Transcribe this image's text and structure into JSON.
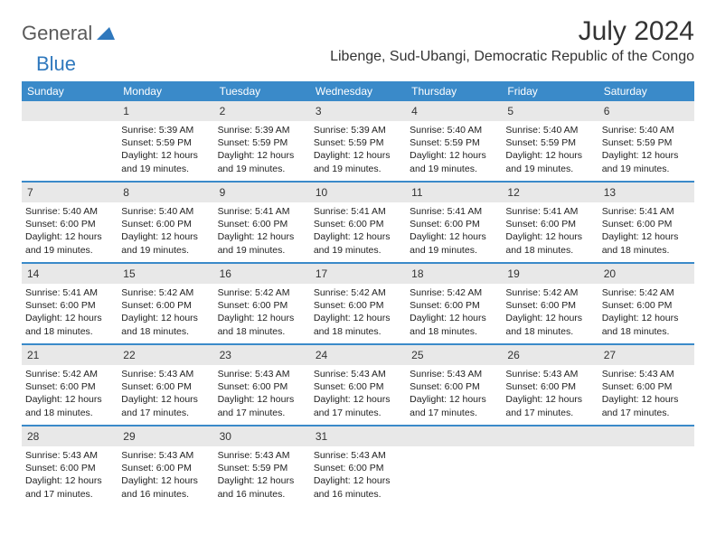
{
  "brand": {
    "word1": "General",
    "word2": "Blue"
  },
  "colors": {
    "accent": "#3a8ac9",
    "headerText": "#ffffff",
    "dayStripe": "#e8e8e8",
    "text": "#333333"
  },
  "title": "July 2024",
  "location": "Libenge, Sud-Ubangi, Democratic Republic of the Congo",
  "dow": [
    "Sunday",
    "Monday",
    "Tuesday",
    "Wednesday",
    "Thursday",
    "Friday",
    "Saturday"
  ],
  "weeks": [
    [
      {
        "blank": true
      },
      {
        "d": "1",
        "sr": "5:39 AM",
        "ss": "5:59 PM",
        "dl": "12 hours and 19 minutes."
      },
      {
        "d": "2",
        "sr": "5:39 AM",
        "ss": "5:59 PM",
        "dl": "12 hours and 19 minutes."
      },
      {
        "d": "3",
        "sr": "5:39 AM",
        "ss": "5:59 PM",
        "dl": "12 hours and 19 minutes."
      },
      {
        "d": "4",
        "sr": "5:40 AM",
        "ss": "5:59 PM",
        "dl": "12 hours and 19 minutes."
      },
      {
        "d": "5",
        "sr": "5:40 AM",
        "ss": "5:59 PM",
        "dl": "12 hours and 19 minutes."
      },
      {
        "d": "6",
        "sr": "5:40 AM",
        "ss": "5:59 PM",
        "dl": "12 hours and 19 minutes."
      }
    ],
    [
      {
        "d": "7",
        "sr": "5:40 AM",
        "ss": "6:00 PM",
        "dl": "12 hours and 19 minutes."
      },
      {
        "d": "8",
        "sr": "5:40 AM",
        "ss": "6:00 PM",
        "dl": "12 hours and 19 minutes."
      },
      {
        "d": "9",
        "sr": "5:41 AM",
        "ss": "6:00 PM",
        "dl": "12 hours and 19 minutes."
      },
      {
        "d": "10",
        "sr": "5:41 AM",
        "ss": "6:00 PM",
        "dl": "12 hours and 19 minutes."
      },
      {
        "d": "11",
        "sr": "5:41 AM",
        "ss": "6:00 PM",
        "dl": "12 hours and 19 minutes."
      },
      {
        "d": "12",
        "sr": "5:41 AM",
        "ss": "6:00 PM",
        "dl": "12 hours and 18 minutes."
      },
      {
        "d": "13",
        "sr": "5:41 AM",
        "ss": "6:00 PM",
        "dl": "12 hours and 18 minutes."
      }
    ],
    [
      {
        "d": "14",
        "sr": "5:41 AM",
        "ss": "6:00 PM",
        "dl": "12 hours and 18 minutes."
      },
      {
        "d": "15",
        "sr": "5:42 AM",
        "ss": "6:00 PM",
        "dl": "12 hours and 18 minutes."
      },
      {
        "d": "16",
        "sr": "5:42 AM",
        "ss": "6:00 PM",
        "dl": "12 hours and 18 minutes."
      },
      {
        "d": "17",
        "sr": "5:42 AM",
        "ss": "6:00 PM",
        "dl": "12 hours and 18 minutes."
      },
      {
        "d": "18",
        "sr": "5:42 AM",
        "ss": "6:00 PM",
        "dl": "12 hours and 18 minutes."
      },
      {
        "d": "19",
        "sr": "5:42 AM",
        "ss": "6:00 PM",
        "dl": "12 hours and 18 minutes."
      },
      {
        "d": "20",
        "sr": "5:42 AM",
        "ss": "6:00 PM",
        "dl": "12 hours and 18 minutes."
      }
    ],
    [
      {
        "d": "21",
        "sr": "5:42 AM",
        "ss": "6:00 PM",
        "dl": "12 hours and 18 minutes."
      },
      {
        "d": "22",
        "sr": "5:43 AM",
        "ss": "6:00 PM",
        "dl": "12 hours and 17 minutes."
      },
      {
        "d": "23",
        "sr": "5:43 AM",
        "ss": "6:00 PM",
        "dl": "12 hours and 17 minutes."
      },
      {
        "d": "24",
        "sr": "5:43 AM",
        "ss": "6:00 PM",
        "dl": "12 hours and 17 minutes."
      },
      {
        "d": "25",
        "sr": "5:43 AM",
        "ss": "6:00 PM",
        "dl": "12 hours and 17 minutes."
      },
      {
        "d": "26",
        "sr": "5:43 AM",
        "ss": "6:00 PM",
        "dl": "12 hours and 17 minutes."
      },
      {
        "d": "27",
        "sr": "5:43 AM",
        "ss": "6:00 PM",
        "dl": "12 hours and 17 minutes."
      }
    ],
    [
      {
        "d": "28",
        "sr": "5:43 AM",
        "ss": "6:00 PM",
        "dl": "12 hours and 17 minutes."
      },
      {
        "d": "29",
        "sr": "5:43 AM",
        "ss": "6:00 PM",
        "dl": "12 hours and 16 minutes."
      },
      {
        "d": "30",
        "sr": "5:43 AM",
        "ss": "5:59 PM",
        "dl": "12 hours and 16 minutes."
      },
      {
        "d": "31",
        "sr": "5:43 AM",
        "ss": "6:00 PM",
        "dl": "12 hours and 16 minutes."
      },
      {
        "blank": true
      },
      {
        "blank": true
      },
      {
        "blank": true
      }
    ]
  ],
  "labels": {
    "sunrise": "Sunrise:",
    "sunset": "Sunset:",
    "daylight": "Daylight:"
  }
}
